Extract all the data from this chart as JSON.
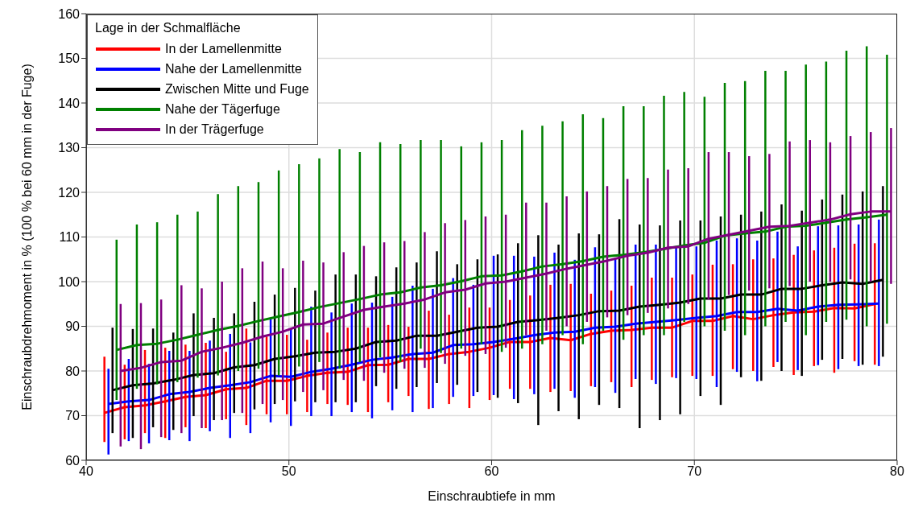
{
  "chart_data": {
    "type": "line",
    "xlabel": "Einschraubtiefe in mm",
    "ylabel": "Einschraubdrehmoment in % (100 % bei 60 mm in der Fuge)",
    "legend_title": "Lage in der Schmalfläche",
    "legend": "top left",
    "grid": true,
    "marker": "none",
    "line_style": "solid",
    "xlim": [
      40,
      80
    ],
    "xticks": [
      40,
      50,
      60,
      70,
      80
    ],
    "ylim": [
      60,
      160
    ],
    "yticks": [
      60,
      70,
      80,
      90,
      100,
      110,
      120,
      130,
      140,
      150,
      160
    ],
    "series": [
      {
        "name": "In der Lamellenmitte",
        "color": "#ff0000",
        "x": [
          40.9,
          41.9,
          42.9,
          43.9,
          44.9,
          45.9,
          46.9,
          47.9,
          48.9,
          49.9,
          50.9,
          51.9,
          52.9,
          53.9,
          54.9,
          55.9,
          56.9,
          57.9,
          58.9,
          59.9,
          60.9,
          61.9,
          62.9,
          63.9,
          64.9,
          65.9,
          66.9,
          67.9,
          68.9,
          69.9,
          70.9,
          71.9,
          72.9,
          73.9,
          74.9,
          75.9,
          76.9,
          77.9,
          78.9
        ],
        "values": [
          70.6,
          71.9,
          72.3,
          73.2,
          74.2,
          74.6,
          75.9,
          76.2,
          77.8,
          77.8,
          78.9,
          79.6,
          79.8,
          81.3,
          81.4,
          82.7,
          82.7,
          83.8,
          84.3,
          85.2,
          86.5,
          86.5,
          87.4,
          86.9,
          88.3,
          89,
          89.2,
          89.7,
          89.7,
          91.2,
          91.2,
          92.3,
          91.6,
          92.5,
          93.1,
          93.3,
          94.1,
          94,
          95
        ],
        "errors": [
          [
            64.1,
            83.2
          ],
          [
            64.7,
            81.4
          ],
          [
            66.1,
            84.7
          ],
          [
            65,
            85.2
          ],
          [
            67.4,
            85.9
          ],
          [
            67.2,
            86.3
          ],
          [
            69.2,
            84.3
          ],
          [
            67.9,
            89.5
          ],
          [
            70.3,
            87.7
          ],
          [
            70.3,
            88.1
          ],
          [
            70.8,
            87
          ],
          [
            72.6,
            88.6
          ],
          [
            72.4,
            89.7
          ],
          [
            70.8,
            89.7
          ],
          [
            73,
            90.3
          ],
          [
            74.4,
            89.9
          ],
          [
            71.5,
            93.5
          ],
          [
            72.6,
            92.6
          ],
          [
            71.7,
            94.2
          ],
          [
            73.5,
            94.2
          ],
          [
            76,
            95.9
          ],
          [
            76,
            96.9
          ],
          [
            75.3,
            99.3
          ],
          [
            75.5,
            99.5
          ],
          [
            76.6,
            97.3
          ],
          [
            77.5,
            98
          ],
          [
            76.4,
            99.1
          ],
          [
            78,
            100.9
          ],
          [
            78.6,
            100.9
          ],
          [
            78.9,
            101.6
          ],
          [
            78.9,
            103.8
          ],
          [
            80.4,
            103.9
          ],
          [
            80,
            105
          ],
          [
            80.9,
            105.2
          ],
          [
            79.1,
            106
          ],
          [
            81.1,
            107
          ],
          [
            79.6,
            107.6
          ],
          [
            82.2,
            108.5
          ],
          [
            81.4,
            108.6
          ]
        ]
      },
      {
        "name": "Nahe der Lamellenmitte",
        "color": "#0000ff",
        "x": [
          41.1,
          42.1,
          43.1,
          44.1,
          45.1,
          46.1,
          47.1,
          48.1,
          49.1,
          50.1,
          51.1,
          52.1,
          53.1,
          54.1,
          55.1,
          56.1,
          57.1,
          58.1,
          59.1,
          60.1,
          61.1,
          62.1,
          63.1,
          64.1,
          65.1,
          66.1,
          67.1,
          68.1,
          69.1,
          70.1,
          71.1,
          72.1,
          73.1,
          74.1,
          75.1,
          76.1,
          77.1,
          78.1,
          79.1
        ],
        "values": [
          72.6,
          73.2,
          73.5,
          74.8,
          75.3,
          76.2,
          76.8,
          77.5,
          78.9,
          78.7,
          79.8,
          80.5,
          81.4,
          82.5,
          83,
          83.8,
          84.1,
          85.8,
          86,
          86.5,
          87.2,
          88,
          88.6,
          88.8,
          89.7,
          89.9,
          90.6,
          91,
          91.4,
          91.9,
          92.3,
          93.2,
          93.2,
          93.9,
          93.5,
          94.4,
          94.8,
          94.9,
          95.1
        ],
        "errors": [
          [
            61.3,
            80.5
          ],
          [
            64.3,
            82.7
          ],
          [
            63.8,
            81.6
          ],
          [
            64.5,
            84.5
          ],
          [
            64.3,
            84.5
          ],
          [
            66.5,
            86.8
          ],
          [
            65,
            88.3
          ],
          [
            66.1,
            86.4
          ],
          [
            68.5,
            91.7
          ],
          [
            67.7,
            89.5
          ],
          [
            69.9,
            94.4
          ],
          [
            69.9,
            93.1
          ],
          [
            70.8,
            95.1
          ],
          [
            69.4,
            95.3
          ],
          [
            71.2,
            96.6
          ],
          [
            70.8,
            99.1
          ],
          [
            71.7,
            98.4
          ],
          [
            74.2,
            100.8
          ],
          [
            74.4,
            99.3
          ],
          [
            74.6,
            105.8
          ],
          [
            73.7,
            105.8
          ],
          [
            74.8,
            105.6
          ],
          [
            76,
            106.5
          ],
          [
            74,
            104.9
          ],
          [
            76.4,
            107.7
          ],
          [
            75.1,
            105.3
          ],
          [
            78.2,
            108.3
          ],
          [
            77.1,
            108.3
          ],
          [
            78.4,
            107.9
          ],
          [
            78.2,
            107.9
          ],
          [
            76.4,
            109.2
          ],
          [
            79.8,
            109.7
          ],
          [
            77.7,
            109.2
          ],
          [
            82,
            111.2
          ],
          [
            80.2,
            107.9
          ],
          [
            81.3,
            112.4
          ],
          [
            80.4,
            112.6
          ],
          [
            81.1,
            112.8
          ],
          [
            81.1,
            113.9
          ]
        ]
      },
      {
        "name": "Zwischen Mitte und Fuge",
        "color": "#000000",
        "x": [
          41.3,
          42.3,
          43.3,
          44.3,
          45.3,
          46.3,
          47.3,
          48.3,
          49.3,
          50.3,
          51.3,
          52.3,
          53.3,
          54.3,
          55.3,
          56.3,
          57.3,
          58.3,
          59.3,
          60.3,
          61.3,
          62.3,
          63.3,
          64.3,
          65.3,
          66.3,
          67.3,
          68.3,
          69.3,
          70.3,
          71.3,
          72.3,
          73.3,
          74.3,
          75.3,
          76.3,
          77.3,
          78.3,
          79.3
        ],
        "values": [
          75.7,
          76.8,
          77.2,
          78,
          79.1,
          79.5,
          80.8,
          81.3,
          82.7,
          83.3,
          84.1,
          84.3,
          85,
          86.5,
          86.8,
          87.9,
          87.9,
          88.8,
          89.7,
          89.9,
          91,
          91.4,
          91.9,
          92.5,
          93.4,
          93.5,
          94.4,
          94.8,
          95.3,
          96.2,
          96.2,
          97.1,
          97.1,
          98.4,
          98.4,
          99.2,
          99.8,
          99.5,
          100.4
        ],
        "errors": [
          [
            66.1,
            89.7
          ],
          [
            65,
            89.4
          ],
          [
            67.4,
            89.5
          ],
          [
            66.8,
            88.6
          ],
          [
            69.9,
            92.9
          ],
          [
            69,
            91.9
          ],
          [
            70.6,
            92.9
          ],
          [
            71.4,
            95.5
          ],
          [
            72.6,
            97.1
          ],
          [
            73.2,
            98.6
          ],
          [
            73,
            98
          ],
          [
            73,
            101.6
          ],
          [
            73,
            101.6
          ],
          [
            76.6,
            101.2
          ],
          [
            76,
            103.2
          ],
          [
            76.4,
            104.3
          ],
          [
            77.3,
            106.8
          ],
          [
            76.9,
            103.9
          ],
          [
            75.3,
            105
          ],
          [
            74,
            106.1
          ],
          [
            72.8,
            108.6
          ],
          [
            67.9,
            110.4
          ],
          [
            71,
            108.3
          ],
          [
            69.2,
            110.8
          ],
          [
            72.4,
            110.6
          ],
          [
            71.7,
            114
          ],
          [
            67.2,
            112.8
          ],
          [
            69,
            112.6
          ],
          [
            70.3,
            113.7
          ],
          [
            74.4,
            113.7
          ],
          [
            72.4,
            114.6
          ],
          [
            78.6,
            115
          ],
          [
            77.8,
            115.7
          ],
          [
            80,
            117.3
          ],
          [
            78.9,
            115.9
          ],
          [
            82.5,
            118.4
          ],
          [
            82.7,
            119.5
          ],
          [
            81.4,
            120.2
          ],
          [
            83.2,
            121.4
          ]
        ]
      },
      {
        "name": "Nahe der Tägerfuge",
        "color": "#008000",
        "x": [
          41.5,
          42.5,
          43.5,
          44.5,
          45.5,
          46.5,
          47.5,
          48.5,
          49.5,
          50.5,
          51.5,
          52.5,
          53.5,
          54.5,
          55.5,
          56.5,
          57.5,
          58.5,
          59.5,
          60.5,
          61.5,
          62.5,
          63.5,
          64.5,
          65.5,
          66.5,
          67.5,
          68.5,
          69.5,
          70.5,
          71.5,
          72.5,
          73.5,
          74.5,
          75.5,
          76.5,
          77.5,
          78.5,
          79.5
        ],
        "values": [
          84.7,
          85.8,
          86.1,
          87,
          88.1,
          89.2,
          90.1,
          91.2,
          92.2,
          93.2,
          94.3,
          95.2,
          96.1,
          97.1,
          97.6,
          98.7,
          99.2,
          100.1,
          101.2,
          101.4,
          102.3,
          103.4,
          103.9,
          104.6,
          105.6,
          106,
          106.6,
          107.3,
          108.1,
          108.7,
          110.3,
          110.8,
          111.2,
          112.3,
          112.5,
          113.2,
          113.9,
          114.4,
          115
        ],
        "errors": [
          [
            73.5,
            109.4
          ],
          [
            76,
            112.8
          ],
          [
            77,
            113.3
          ],
          [
            77.5,
            115
          ],
          [
            78.5,
            115.7
          ],
          [
            79,
            119.6
          ],
          [
            80,
            121.4
          ],
          [
            80.5,
            122.3
          ],
          [
            79,
            124.9
          ],
          [
            81,
            126.3
          ],
          [
            82,
            127.6
          ],
          [
            80.5,
            129.7
          ],
          [
            82,
            129
          ],
          [
            83,
            131.2
          ],
          [
            82,
            130.8
          ],
          [
            85,
            131.7
          ],
          [
            84,
            131.7
          ],
          [
            85,
            130.3
          ],
          [
            86,
            131.2
          ],
          [
            84.3,
            131.7
          ],
          [
            85,
            133.9
          ],
          [
            86,
            134.9
          ],
          [
            88,
            135.9
          ],
          [
            86,
            137.5
          ],
          [
            89,
            136.6
          ],
          [
            87,
            139.3
          ],
          [
            88,
            139.3
          ],
          [
            88,
            141.6
          ],
          [
            91,
            142.5
          ],
          [
            90,
            141.4
          ],
          [
            89,
            144.5
          ],
          [
            88,
            144.9
          ],
          [
            90,
            147.2
          ],
          [
            91,
            147.2
          ],
          [
            88,
            148.6
          ],
          [
            91,
            149.3
          ],
          [
            91.5,
            151.7
          ],
          [
            90,
            152.7
          ],
          [
            90.6,
            150.8
          ]
        ]
      },
      {
        "name": "In der Trägerfuge",
        "color": "#800080",
        "x": [
          41.7,
          42.7,
          43.7,
          44.7,
          45.7,
          46.7,
          47.7,
          48.7,
          49.7,
          50.7,
          51.7,
          52.7,
          53.7,
          54.7,
          55.7,
          56.7,
          57.7,
          58.7,
          59.7,
          60.7,
          61.7,
          62.7,
          63.7,
          64.7,
          65.7,
          66.7,
          67.7,
          68.7,
          69.7,
          70.7,
          71.7,
          72.7,
          73.7,
          74.7,
          75.7,
          76.7,
          77.7,
          78.7,
          79.7
        ],
        "values": [
          80,
          80.7,
          82,
          82.3,
          84.3,
          85.2,
          86.3,
          87.7,
          88.8,
          90.4,
          90.6,
          92.2,
          93.7,
          94.4,
          95.1,
          96,
          97.6,
          98.2,
          99.6,
          100,
          100.9,
          101.8,
          102.9,
          103.8,
          104.7,
          105.8,
          106.5,
          107.6,
          107.9,
          109.6,
          110.5,
          111.4,
          112.3,
          112.5,
          113.2,
          113.9,
          115.1,
          115.7,
          115.7
        ],
        "errors": [
          [
            63.1,
            95
          ],
          [
            62.5,
            95.2
          ],
          [
            65.2,
            96
          ],
          [
            66.1,
            99.2
          ],
          [
            67.2,
            98.5
          ],
          [
            69,
            100
          ],
          [
            70.6,
            103
          ],
          [
            72.6,
            104.5
          ],
          [
            73.5,
            103
          ],
          [
            75.3,
            104.7
          ],
          [
            75.7,
            104.3
          ],
          [
            78,
            106.6
          ],
          [
            77.8,
            108
          ],
          [
            79.6,
            108.8
          ],
          [
            80.5,
            109.1
          ],
          [
            80.7,
            111.1
          ],
          [
            81.6,
            113.1
          ],
          [
            83.4,
            113.8
          ],
          [
            83.8,
            114.6
          ],
          [
            85.2,
            115
          ],
          [
            88,
            117.7
          ],
          [
            89,
            117.7
          ],
          [
            90,
            119.1
          ],
          [
            91,
            120.2
          ],
          [
            92,
            121.4
          ],
          [
            92.5,
            123
          ],
          [
            93,
            123.2
          ],
          [
            94,
            125.1
          ],
          [
            95,
            125.4
          ],
          [
            96,
            129
          ],
          [
            97,
            129
          ],
          [
            98,
            128.1
          ],
          [
            98.5,
            128.6
          ],
          [
            99,
            131.4
          ],
          [
            100,
            131.7
          ],
          [
            100,
            131.2
          ],
          [
            100.5,
            132.6
          ],
          [
            100,
            133.5
          ],
          [
            99.5,
            134.4
          ]
        ]
      }
    ]
  }
}
